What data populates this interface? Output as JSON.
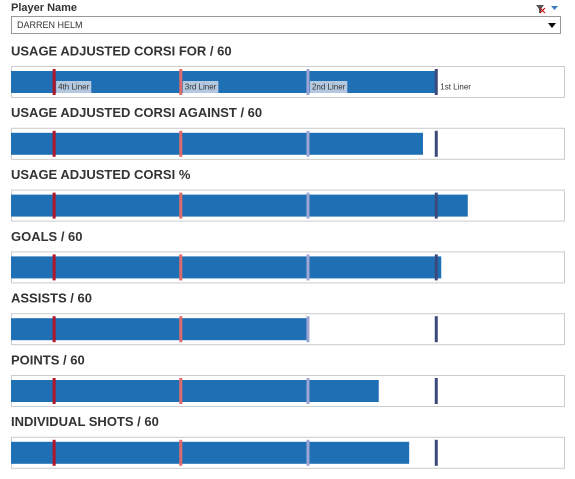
{
  "filter": {
    "label": "Player Name",
    "value": "DARREN HELM"
  },
  "reference_lines": [
    {
      "value": 7.8,
      "label": "4th Liner",
      "color": "#b0162a"
    },
    {
      "value": 30.7,
      "label": "3rd Liner",
      "color": "#e06a6a"
    },
    {
      "value": 53.7,
      "label": "2nd Liner",
      "color": "#9ea6d6"
    },
    {
      "value": 76.9,
      "label": "1st Liner",
      "color": "#3b4a7a"
    }
  ],
  "chart_data": [
    {
      "type": "bar",
      "title": "USAGE ADJUSTED CORSI FOR / 60",
      "values": [
        76.9
      ],
      "color": "#1f6fb5",
      "xlim": [
        0,
        100
      ],
      "reference_labels": true
    },
    {
      "type": "bar",
      "title": "USAGE ADJUSTED CORSI AGAINST / 60",
      "values": [
        74.5
      ],
      "color": "#1f6fb5",
      "xlim": [
        0,
        100
      ]
    },
    {
      "type": "bar",
      "title": "USAGE ADJUSTED CORSI %",
      "values": [
        82.6
      ],
      "color": "#1f6fb5",
      "xlim": [
        0,
        100
      ]
    },
    {
      "type": "bar",
      "title": "GOALS / 60",
      "values": [
        77.8
      ],
      "color": "#1f6fb5",
      "xlim": [
        0,
        100
      ]
    },
    {
      "type": "bar",
      "title": "ASSISTS / 60",
      "values": [
        53.5
      ],
      "color": "#1f6fb5",
      "xlim": [
        0,
        100
      ]
    },
    {
      "type": "bar",
      "title": "POINTS / 60",
      "values": [
        66.5
      ],
      "color": "#1f6fb5",
      "xlim": [
        0,
        100
      ]
    },
    {
      "type": "bar",
      "title": "INDIVIDUAL SHOTS / 60",
      "values": [
        72.0
      ],
      "color": "#1f6fb5",
      "xlim": [
        0,
        100
      ]
    }
  ]
}
